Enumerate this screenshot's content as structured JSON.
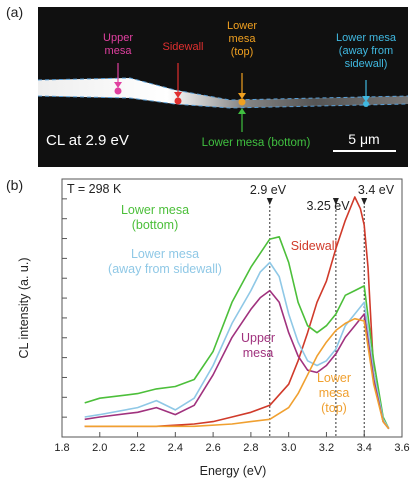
{
  "panel_a": {
    "label": "(a)",
    "caption": "CL at 2.9 eV",
    "scale_bar": "5 μm",
    "markers": [
      {
        "name": "upper-mesa",
        "label_lines": [
          "Upper",
          "mesa"
        ],
        "color": "#e040a0"
      },
      {
        "name": "sidewall",
        "label_lines": [
          "Sidewall"
        ],
        "color": "#e03030"
      },
      {
        "name": "lower-mesa-top",
        "label_lines": [
          "Lower",
          "mesa",
          "(top)"
        ],
        "color": "#f0a020"
      },
      {
        "name": "lower-mesa-away",
        "label_lines": [
          "Lower mesa",
          "(away from",
          "sidewall)"
        ],
        "color": "#40b8e0"
      },
      {
        "name": "lower-mesa-bottom",
        "label_lines": [
          "Lower mesa (bottom)"
        ],
        "color": "#40c040"
      }
    ]
  },
  "panel_b": {
    "label": "(b)",
    "temperature": "T = 298 K",
    "peak_labels": [
      "2.9 eV",
      "3.25 eV",
      "3.4 eV"
    ],
    "peak_positions": [
      2.9,
      3.25,
      3.4
    ],
    "series_labels": {
      "lower_mesa_bottom": [
        "Lower mesa",
        "(bottom)"
      ],
      "lower_mesa_away": [
        "Lower mesa",
        "(away from sidewall)"
      ],
      "upper_mesa": [
        "Upper",
        "mesa"
      ],
      "sidewall": [
        "Sidewall"
      ],
      "lower_mesa_top": [
        "Lower",
        "mesa",
        "(top)"
      ]
    }
  },
  "chart_data": {
    "type": "line",
    "xlabel": "Energy (eV)",
    "ylabel": "CL intensity (a. u.)",
    "xlim": [
      1.8,
      3.6
    ],
    "ylim": [
      0,
      1
    ],
    "xticks": [
      "1.8",
      "2.0",
      "2.2",
      "2.4",
      "2.6",
      "2.8",
      "3.0",
      "3.2",
      "3.4",
      "3.6"
    ],
    "series": [
      {
        "key": "sidewall",
        "color": "#d03a2a",
        "x": [
          1.92,
          2.1,
          2.3,
          2.5,
          2.6,
          2.7,
          2.8,
          2.9,
          3.0,
          3.05,
          3.1,
          3.15,
          3.2,
          3.25,
          3.3,
          3.35,
          3.38,
          3.4,
          3.42,
          3.45,
          3.5,
          3.53
        ],
        "y": [
          0.02,
          0.02,
          0.02,
          0.03,
          0.04,
          0.06,
          0.08,
          0.11,
          0.2,
          0.3,
          0.42,
          0.55,
          0.64,
          0.78,
          0.9,
          1.0,
          0.95,
          0.88,
          0.7,
          0.25,
          0.05,
          0.01
        ]
      },
      {
        "key": "lower_mesa_bottom",
        "color": "#4cbf3a",
        "x": [
          1.92,
          2.0,
          2.2,
          2.3,
          2.4,
          2.5,
          2.6,
          2.7,
          2.8,
          2.85,
          2.9,
          2.95,
          3.0,
          3.05,
          3.1,
          3.15,
          3.2,
          3.25,
          3.3,
          3.35,
          3.4,
          3.45,
          3.5,
          3.53
        ],
        "y": [
          0.12,
          0.14,
          0.16,
          0.18,
          0.19,
          0.22,
          0.34,
          0.55,
          0.7,
          0.76,
          0.82,
          0.83,
          0.72,
          0.55,
          0.45,
          0.42,
          0.45,
          0.5,
          0.58,
          0.6,
          0.62,
          0.3,
          0.06,
          0.01
        ]
      },
      {
        "key": "lower_mesa_away",
        "color": "#8fc8e6",
        "x": [
          1.92,
          2.0,
          2.2,
          2.3,
          2.4,
          2.5,
          2.6,
          2.7,
          2.8,
          2.85,
          2.9,
          2.95,
          3.0,
          3.05,
          3.1,
          3.15,
          3.2,
          3.25,
          3.3,
          3.35,
          3.4,
          3.45,
          3.5,
          3.53
        ],
        "y": [
          0.06,
          0.07,
          0.1,
          0.13,
          0.09,
          0.14,
          0.28,
          0.46,
          0.6,
          0.68,
          0.72,
          0.66,
          0.5,
          0.38,
          0.3,
          0.28,
          0.3,
          0.35,
          0.45,
          0.5,
          0.55,
          0.25,
          0.05,
          0.01
        ]
      },
      {
        "key": "upper_mesa",
        "color": "#a0327e",
        "x": [
          1.92,
          2.0,
          2.2,
          2.3,
          2.4,
          2.5,
          2.6,
          2.7,
          2.8,
          2.85,
          2.9,
          2.95,
          3.0,
          3.05,
          3.1,
          3.15,
          3.2,
          3.25,
          3.3,
          3.35,
          3.4,
          3.45,
          3.5,
          3.53
        ],
        "y": [
          0.05,
          0.06,
          0.08,
          0.1,
          0.07,
          0.11,
          0.24,
          0.4,
          0.52,
          0.57,
          0.6,
          0.55,
          0.42,
          0.32,
          0.26,
          0.25,
          0.28,
          0.33,
          0.4,
          0.45,
          0.5,
          0.22,
          0.04,
          0.01
        ]
      },
      {
        "key": "lower_mesa_top",
        "color": "#f0a030",
        "x": [
          1.92,
          2.1,
          2.3,
          2.5,
          2.7,
          2.8,
          2.9,
          3.0,
          3.05,
          3.1,
          3.15,
          3.2,
          3.25,
          3.3,
          3.35,
          3.4,
          3.45,
          3.5,
          3.53
        ],
        "y": [
          0.02,
          0.02,
          0.02,
          0.02,
          0.03,
          0.04,
          0.05,
          0.1,
          0.16,
          0.24,
          0.32,
          0.38,
          0.43,
          0.46,
          0.48,
          0.47,
          0.2,
          0.04,
          0.01
        ]
      }
    ]
  }
}
